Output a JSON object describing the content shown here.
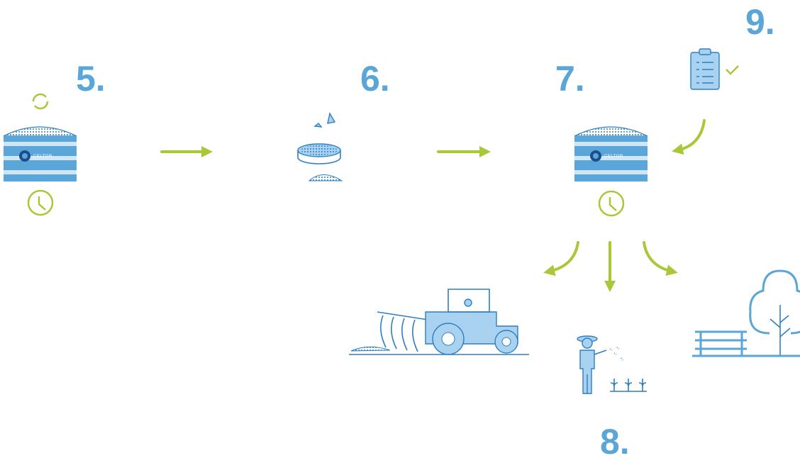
{
  "steps": [
    {
      "label": "5."
    },
    {
      "label": "6."
    },
    {
      "label": "7."
    },
    {
      "label": "8."
    },
    {
      "label": "9."
    }
  ],
  "brand": "CELTOR"
}
